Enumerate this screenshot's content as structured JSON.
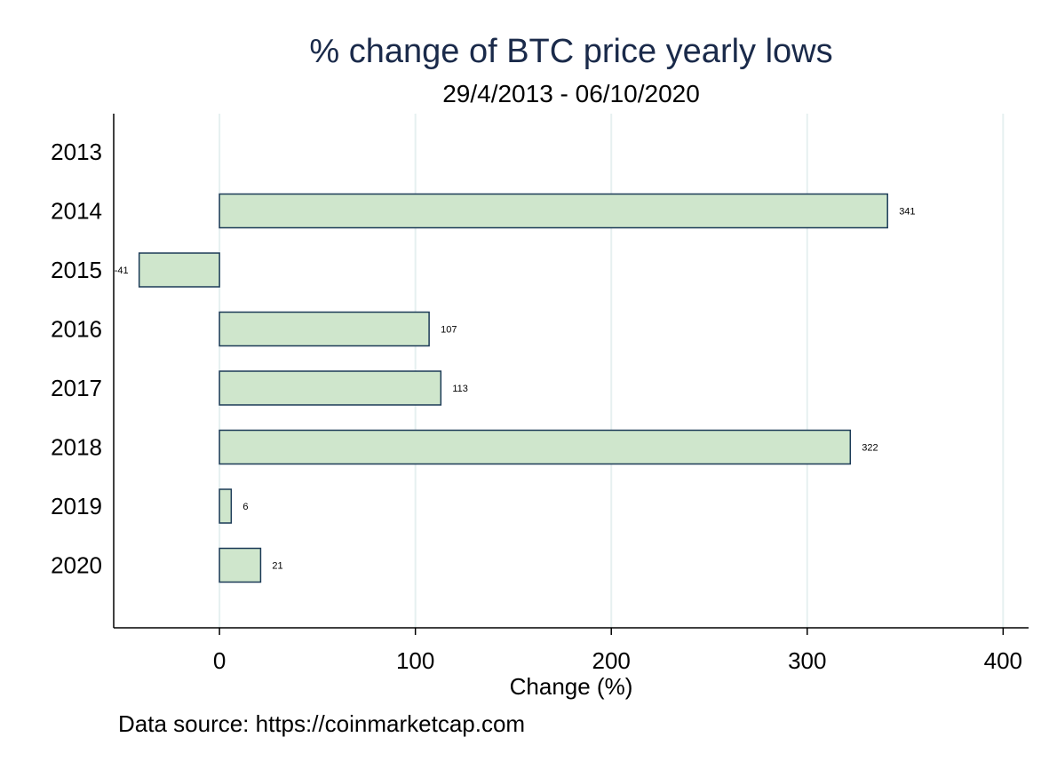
{
  "chart_data": {
    "type": "bar",
    "orientation": "horizontal",
    "title": "% change of BTC price yearly lows",
    "subtitle": "29/4/2013 - 06/10/2020",
    "xlabel": "Change (%)",
    "ylabel": "",
    "note": "Data source: https://coinmarketcap.com",
    "categories": [
      "2013",
      "2014",
      "2015",
      "2016",
      "2017",
      "2018",
      "2019",
      "2020"
    ],
    "values": [
      null,
      341,
      -41,
      107,
      113,
      322,
      6,
      21
    ],
    "data_labels": [
      "",
      "341",
      "-41",
      "107",
      "113",
      "322",
      "6",
      "21"
    ],
    "xlim": [
      -54,
      413
    ],
    "xticks": [
      0,
      100,
      200,
      300,
      400
    ],
    "xtick_labels": [
      "0",
      "100",
      "200",
      "300",
      "400"
    ],
    "grid": true,
    "legend": "none",
    "colors": {
      "bar_fill": "#cfe6cc",
      "bar_edge": "#1b3a57",
      "grid": "#e6f0f0",
      "title": "#1a2a4a"
    }
  }
}
